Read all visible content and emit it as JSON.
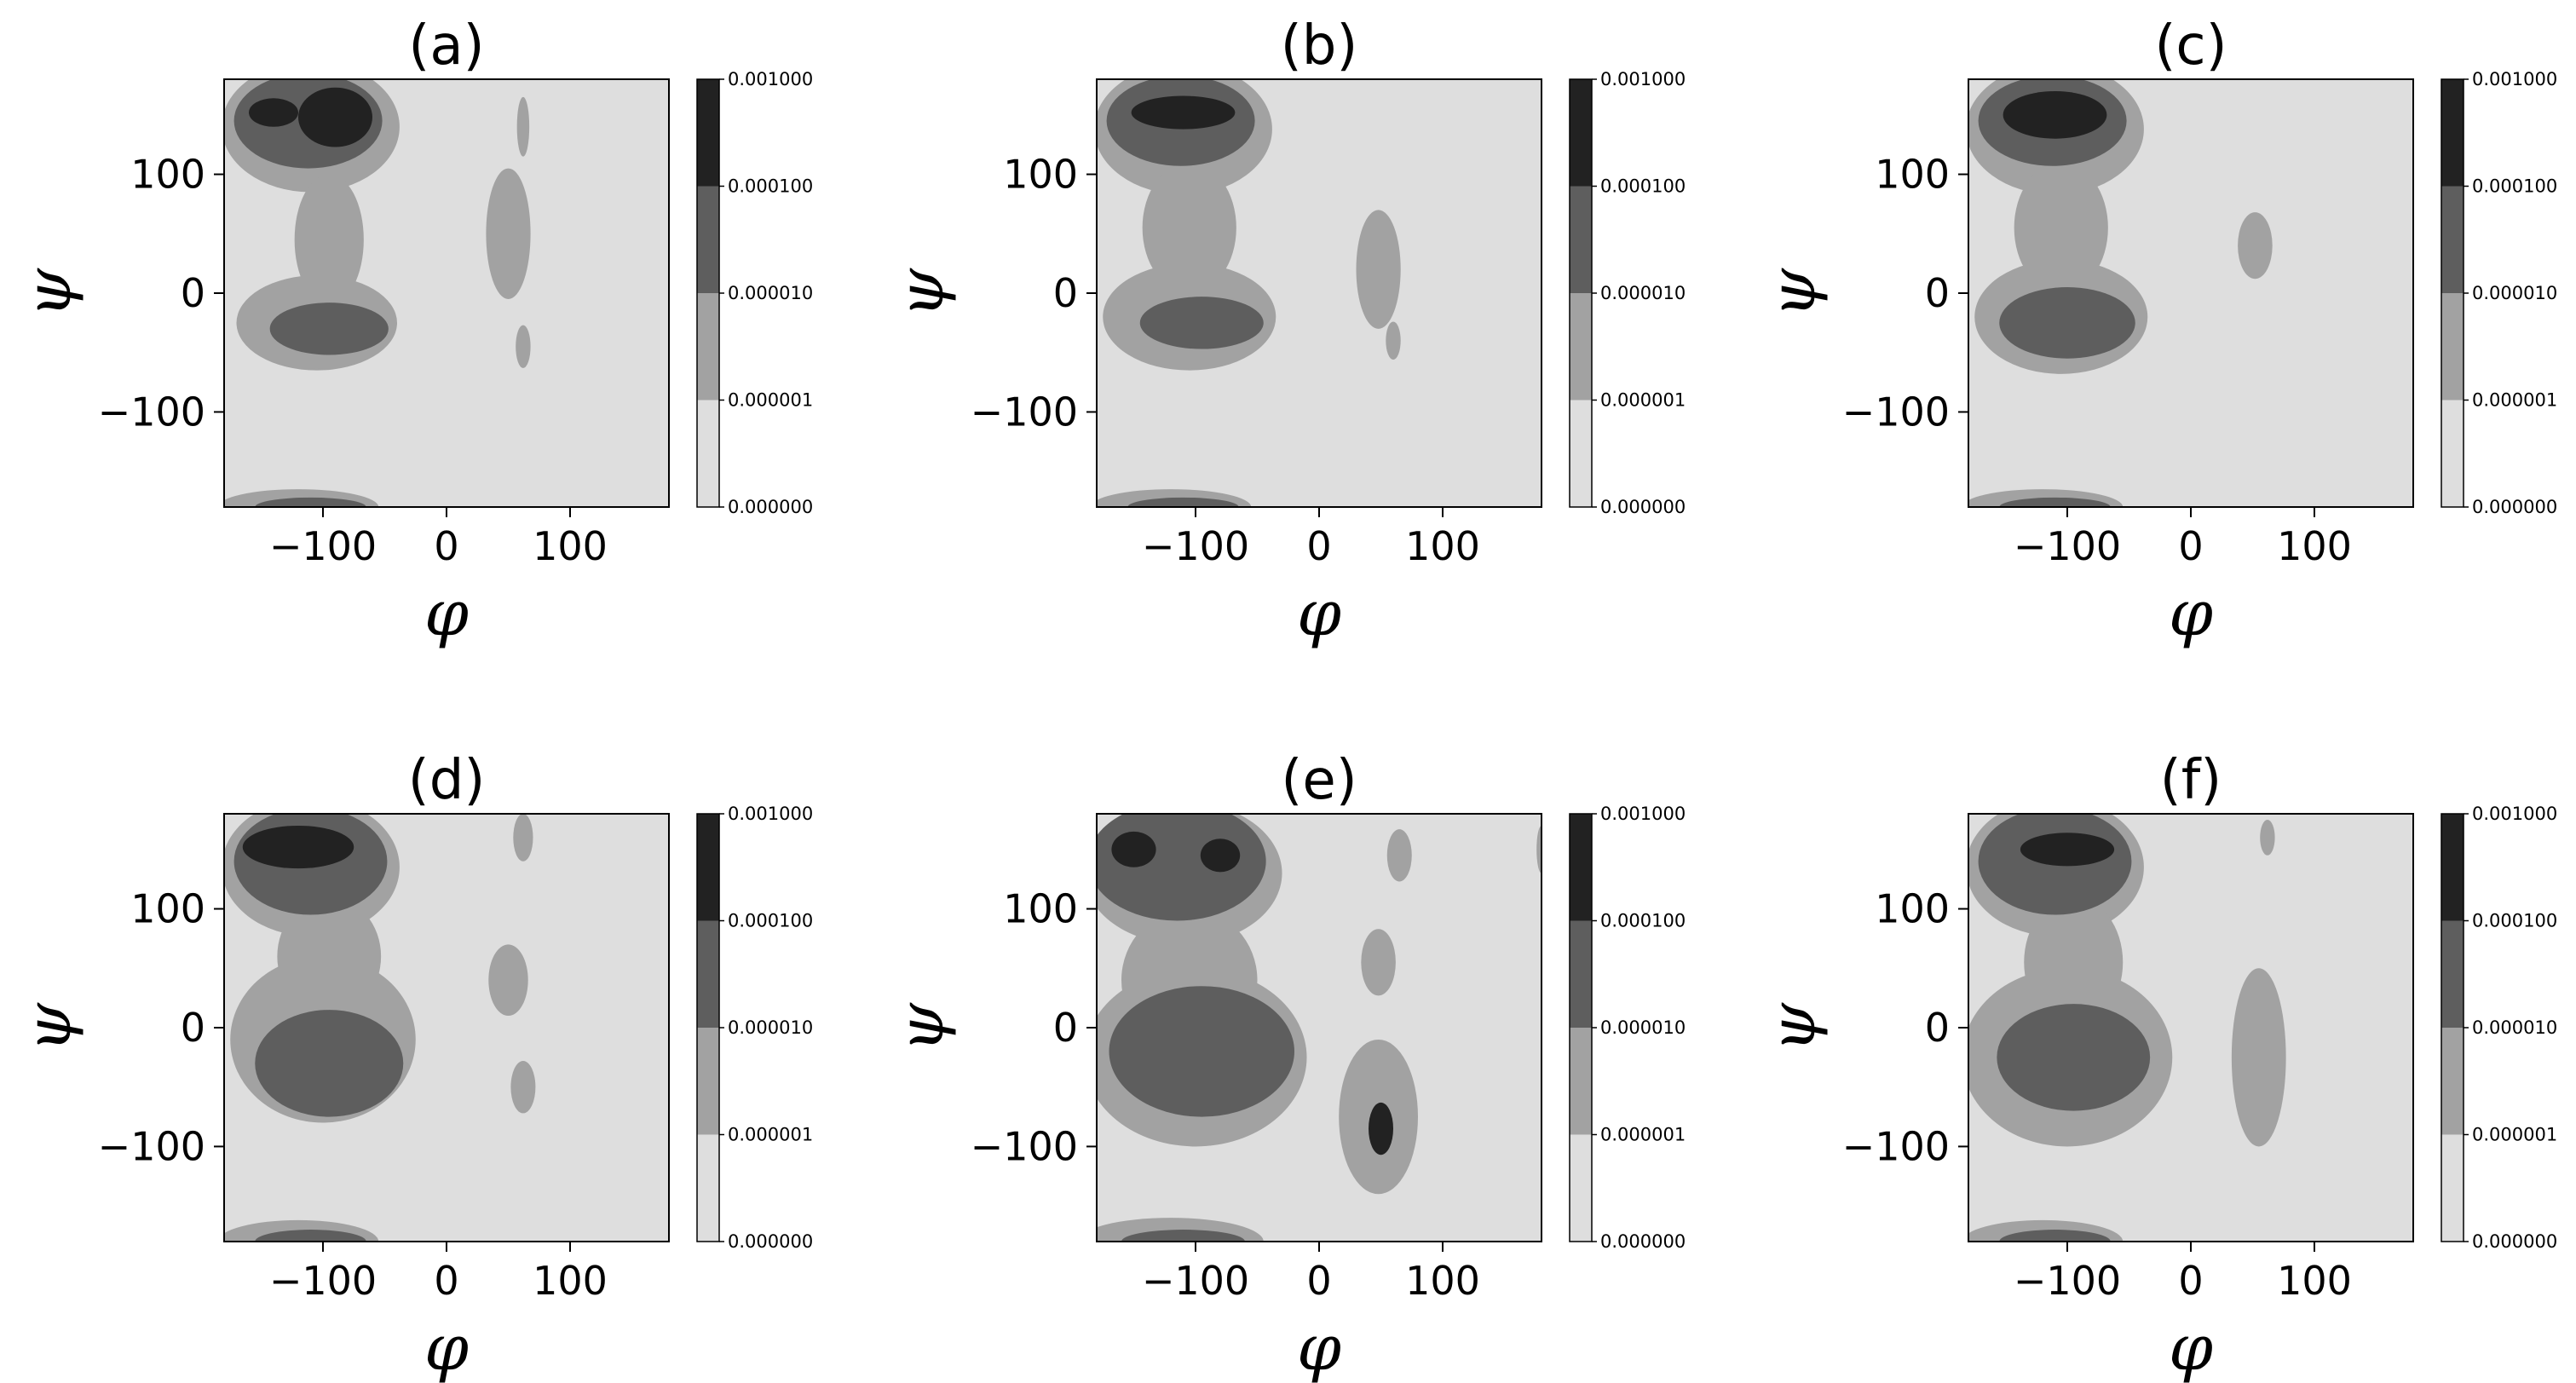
{
  "chart_data": {
    "type": "heatmap",
    "description_units": "phi and psi in degrees; levels are probability density thresholds",
    "shared": {
      "xlabel": "φ",
      "ylabel": "ψ",
      "xlim": [
        -180,
        180
      ],
      "ylim": [
        -180,
        180
      ],
      "xticks": [
        -100,
        0,
        100
      ],
      "yticks": [
        -100,
        0,
        100
      ],
      "colorbar": {
        "levels": [
          0.0,
          1e-06,
          1e-05,
          0.0001,
          0.001
        ],
        "labels": [
          "0.000000",
          "0.000001",
          "0.000010",
          "0.000100",
          "0.001000"
        ],
        "colors": [
          "#dedede",
          "#a2a2a2",
          "#5e5e5e",
          "#222222"
        ]
      },
      "grid": false
    },
    "panels": [
      {
        "title": "(a)",
        "regions": [
          {
            "level": 1,
            "phi": -110,
            "psi": 140,
            "rphi": 72,
            "rpsi": 55
          },
          {
            "level": 1,
            "phi": -95,
            "psi": 45,
            "rphi": 28,
            "rpsi": 55
          },
          {
            "level": 1,
            "phi": -105,
            "psi": -25,
            "rphi": 65,
            "rpsi": 40
          },
          {
            "level": 1,
            "phi": 50,
            "psi": 50,
            "rphi": 18,
            "rpsi": 55
          },
          {
            "level": 1,
            "phi": 62,
            "psi": -45,
            "rphi": 6,
            "rpsi": 18
          },
          {
            "level": 1,
            "phi": 62,
            "psi": 140,
            "rphi": 5,
            "rpsi": 25
          },
          {
            "level": 1,
            "phi": -120,
            "psi": -180,
            "rphi": 65,
            "rpsi": 15
          },
          {
            "level": 2,
            "phi": -112,
            "psi": 145,
            "rphi": 60,
            "rpsi": 40
          },
          {
            "level": 2,
            "phi": -95,
            "psi": -30,
            "rphi": 48,
            "rpsi": 22
          },
          {
            "level": 2,
            "phi": -110,
            "psi": -180,
            "rphi": 45,
            "rpsi": 8
          },
          {
            "level": 3,
            "phi": -140,
            "psi": 152,
            "rphi": 20,
            "rpsi": 12
          },
          {
            "level": 3,
            "phi": -90,
            "psi": 148,
            "rphi": 30,
            "rpsi": 25
          }
        ]
      },
      {
        "title": "(b)",
        "regions": [
          {
            "level": 1,
            "phi": -110,
            "psi": 138,
            "rphi": 72,
            "rpsi": 55
          },
          {
            "level": 1,
            "phi": -105,
            "psi": 55,
            "rphi": 38,
            "rpsi": 55
          },
          {
            "level": 1,
            "phi": -105,
            "psi": -20,
            "rphi": 70,
            "rpsi": 45
          },
          {
            "level": 1,
            "phi": 48,
            "psi": 20,
            "rphi": 18,
            "rpsi": 50
          },
          {
            "level": 1,
            "phi": 60,
            "psi": -40,
            "rphi": 6,
            "rpsi": 16
          },
          {
            "level": 1,
            "phi": -120,
            "psi": -180,
            "rphi": 65,
            "rpsi": 15
          },
          {
            "level": 2,
            "phi": -112,
            "psi": 145,
            "rphi": 60,
            "rpsi": 38
          },
          {
            "level": 2,
            "phi": -95,
            "psi": -25,
            "rphi": 50,
            "rpsi": 22
          },
          {
            "level": 2,
            "phi": -110,
            "psi": -180,
            "rphi": 45,
            "rpsi": 8
          },
          {
            "level": 3,
            "phi": -110,
            "psi": 152,
            "rphi": 42,
            "rpsi": 14
          }
        ]
      },
      {
        "title": "(c)",
        "regions": [
          {
            "level": 1,
            "phi": -110,
            "psi": 138,
            "rphi": 72,
            "rpsi": 55
          },
          {
            "level": 1,
            "phi": -105,
            "psi": 55,
            "rphi": 38,
            "rpsi": 55
          },
          {
            "level": 1,
            "phi": -105,
            "psi": -20,
            "rphi": 70,
            "rpsi": 48
          },
          {
            "level": 1,
            "phi": 52,
            "psi": 40,
            "rphi": 14,
            "rpsi": 28
          },
          {
            "level": 1,
            "phi": -120,
            "psi": -180,
            "rphi": 65,
            "rpsi": 15
          },
          {
            "level": 2,
            "phi": -112,
            "psi": 145,
            "rphi": 60,
            "rpsi": 38
          },
          {
            "level": 2,
            "phi": -100,
            "psi": -25,
            "rphi": 55,
            "rpsi": 30
          },
          {
            "level": 2,
            "phi": -110,
            "psi": -180,
            "rphi": 45,
            "rpsi": 8
          },
          {
            "level": 3,
            "phi": -110,
            "psi": 150,
            "rphi": 42,
            "rpsi": 20
          }
        ]
      },
      {
        "title": "(d)",
        "regions": [
          {
            "level": 1,
            "phi": -110,
            "psi": 135,
            "rphi": 72,
            "rpsi": 58
          },
          {
            "level": 1,
            "phi": -95,
            "psi": 60,
            "rphi": 42,
            "rpsi": 50
          },
          {
            "level": 1,
            "phi": -100,
            "psi": -10,
            "rphi": 75,
            "rpsi": 70
          },
          {
            "level": 1,
            "phi": 50,
            "psi": 40,
            "rphi": 16,
            "rpsi": 30
          },
          {
            "level": 1,
            "phi": 62,
            "psi": -50,
            "rphi": 10,
            "rpsi": 22
          },
          {
            "level": 1,
            "phi": 62,
            "psi": 160,
            "rphi": 8,
            "rpsi": 20
          },
          {
            "level": 1,
            "phi": -120,
            "psi": -180,
            "rphi": 65,
            "rpsi": 18
          },
          {
            "level": 2,
            "phi": -110,
            "psi": 140,
            "rphi": 62,
            "rpsi": 45
          },
          {
            "level": 2,
            "phi": -95,
            "psi": -30,
            "rphi": 60,
            "rpsi": 45
          },
          {
            "level": 2,
            "phi": -110,
            "psi": -180,
            "rphi": 45,
            "rpsi": 10
          },
          {
            "level": 3,
            "phi": -120,
            "psi": 152,
            "rphi": 45,
            "rpsi": 18
          }
        ]
      },
      {
        "title": "(e)",
        "regions": [
          {
            "level": 1,
            "phi": -110,
            "psi": 130,
            "rphi": 80,
            "rpsi": 60
          },
          {
            "level": 1,
            "phi": -105,
            "psi": 40,
            "rphi": 55,
            "rpsi": 60
          },
          {
            "level": 1,
            "phi": -100,
            "psi": -25,
            "rphi": 90,
            "rpsi": 75
          },
          {
            "level": 1,
            "phi": 48,
            "psi": 55,
            "rphi": 14,
            "rpsi": 28
          },
          {
            "level": 1,
            "phi": 48,
            "psi": -75,
            "rphi": 32,
            "rpsi": 65
          },
          {
            "level": 1,
            "phi": 65,
            "psi": 145,
            "rphi": 10,
            "rpsi": 22
          },
          {
            "level": 1,
            "phi": 180,
            "psi": 150,
            "rphi": 4,
            "rpsi": 20
          },
          {
            "level": 1,
            "phi": -120,
            "psi": -180,
            "rphi": 75,
            "rpsi": 20
          },
          {
            "level": 2,
            "phi": -115,
            "psi": 140,
            "rphi": 72,
            "rpsi": 50
          },
          {
            "level": 2,
            "phi": -95,
            "psi": -20,
            "rphi": 75,
            "rpsi": 55
          },
          {
            "level": 2,
            "phi": -110,
            "psi": -180,
            "rphi": 50,
            "rpsi": 10
          },
          {
            "level": 3,
            "phi": -150,
            "psi": 150,
            "rphi": 18,
            "rpsi": 15
          },
          {
            "level": 3,
            "phi": -80,
            "psi": 145,
            "rphi": 16,
            "rpsi": 14
          },
          {
            "level": 3,
            "phi": 50,
            "psi": -85,
            "rphi": 10,
            "rpsi": 22
          }
        ]
      },
      {
        "title": "(f)",
        "regions": [
          {
            "level": 1,
            "phi": -110,
            "psi": 135,
            "rphi": 72,
            "rpsi": 58
          },
          {
            "level": 1,
            "phi": -95,
            "psi": 55,
            "rphi": 40,
            "rpsi": 55
          },
          {
            "level": 1,
            "phi": -100,
            "psi": -25,
            "rphi": 85,
            "rpsi": 75
          },
          {
            "level": 1,
            "phi": 55,
            "psi": -25,
            "rphi": 22,
            "rpsi": 75
          },
          {
            "level": 1,
            "phi": 62,
            "psi": 160,
            "rphi": 6,
            "rpsi": 15
          },
          {
            "level": 1,
            "phi": -120,
            "psi": -180,
            "rphi": 65,
            "rpsi": 18
          },
          {
            "level": 2,
            "phi": -110,
            "psi": 140,
            "rphi": 62,
            "rpsi": 45
          },
          {
            "level": 2,
            "phi": -95,
            "psi": -25,
            "rphi": 62,
            "rpsi": 45
          },
          {
            "level": 2,
            "phi": -110,
            "psi": -180,
            "rphi": 45,
            "rpsi": 10
          },
          {
            "level": 3,
            "phi": -100,
            "psi": 150,
            "rphi": 38,
            "rpsi": 14
          }
        ]
      }
    ]
  }
}
